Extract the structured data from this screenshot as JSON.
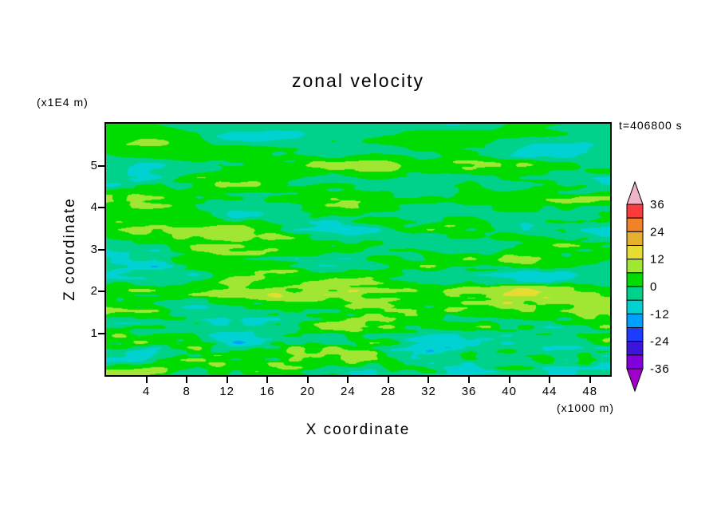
{
  "title": "zonal velocity",
  "annotations": {
    "y_units": "(x1E4 m)",
    "x_units": "(x1000 m)",
    "time": "t=406800 s"
  },
  "axes": {
    "x_label": "X coordinate",
    "y_label": "Z coordinate",
    "x_ticks": [
      4,
      8,
      12,
      16,
      20,
      24,
      28,
      32,
      36,
      40,
      44,
      48
    ],
    "y_ticks": [
      1,
      2,
      3,
      4,
      5
    ],
    "x_range": [
      0,
      50
    ],
    "y_range": [
      0,
      6
    ]
  },
  "chart_data": {
    "type": "heatmap",
    "title": "zonal velocity",
    "xlabel": "X coordinate",
    "x_units": "(x1000 m)",
    "ylabel": "Z coordinate",
    "y_units": "(x1E4 m)",
    "time_annotation": "t=406800 s",
    "x_range": [
      0,
      50
    ],
    "x_tick_labels": [
      4,
      8,
      12,
      16,
      20,
      24,
      28,
      32,
      36,
      40,
      44,
      48
    ],
    "y_range": [
      0,
      6
    ],
    "y_tick_labels": [
      1,
      2,
      3,
      4,
      5
    ],
    "grid": false,
    "legend_position": "right-colorbar",
    "field_description": "Filled-contour zonal velocity u(x,z): horizontally elongated streaks; values mostly between -6 and 6 (two green bands) with scattered patches reaching roughly +/-12 to +/-18 (yellow-green, yellow, cyan); finer-scale structure near the lower boundary.",
    "colorbar": {
      "orientation": "vertical",
      "levels": [
        -36,
        -30,
        -24,
        -18,
        -12,
        -6,
        0,
        6,
        12,
        18,
        24,
        30,
        36
      ],
      "tick_labels": [
        36,
        24,
        12,
        0,
        -12,
        -24,
        -36
      ],
      "colors_high_to_low": [
        "#fa3c3c",
        "#f08228",
        "#e6af2d",
        "#e6dc32",
        "#a0e632",
        "#00dc00",
        "#00d28c",
        "#00d2d2",
        "#00a0ff",
        "#1e3cff",
        "#3c14dc",
        "#8200dc"
      ],
      "above_max_color": "#f0b4c8",
      "below_min_color": "#a000c8"
    }
  }
}
